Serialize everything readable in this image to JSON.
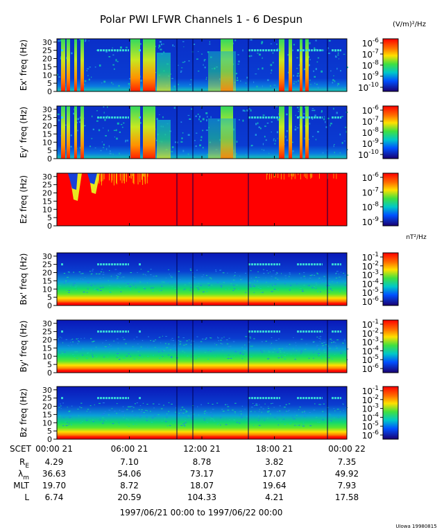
{
  "title": "Polar PWI LFWR Channels 1 - 6 Despun",
  "unit_e": "(V/m)²/Hz",
  "unit_b": "nT²/Hz",
  "footer_range": "1997/06/21 00:00 to 1997/06/22 00:00",
  "credit": "UIowa 19980815",
  "colors": {
    "background": "#ffffff",
    "dark_blue": "#0018a8",
    "red": "#ff0000"
  },
  "chart_data": {
    "type": "heatmap",
    "x_ticks": [
      "00:00 21",
      "06:00 21",
      "12:00 21",
      "18:00 21",
      "00:00 22"
    ],
    "x_axis_label": "SCET",
    "y_ticks": [
      0,
      5,
      10,
      15,
      20,
      25,
      30
    ],
    "ylim": [
      0,
      32
    ],
    "panels": [
      {
        "ylabel": "Ex' freq (Hz)",
        "cbar": [
          {
            "b": "10",
            "e": "-6"
          },
          {
            "b": "10",
            "e": "-7"
          },
          {
            "b": "10",
            "e": "-8"
          },
          {
            "b": "10",
            "e": "-9"
          },
          {
            "b": "10",
            "e": "-10"
          }
        ]
      },
      {
        "ylabel": "Ey' freq (Hz)",
        "cbar": [
          {
            "b": "10",
            "e": "-6"
          },
          {
            "b": "10",
            "e": "-7"
          },
          {
            "b": "10",
            "e": "-8"
          },
          {
            "b": "10",
            "e": "-9"
          },
          {
            "b": "10",
            "e": "-10"
          }
        ]
      },
      {
        "ylabel": "Ez freq (Hz)",
        "cbar": [
          {
            "b": "10",
            "e": "-6"
          },
          {
            "b": "10",
            "e": "-7"
          },
          {
            "b": "10",
            "e": "-8"
          },
          {
            "b": "10",
            "e": "-9"
          }
        ]
      },
      {
        "ylabel": "Bx' freq (Hz)",
        "cbar": [
          {
            "b": "10",
            "e": "-1"
          },
          {
            "b": "10",
            "e": "-2"
          },
          {
            "b": "10",
            "e": "-3"
          },
          {
            "b": "10",
            "e": "-4"
          },
          {
            "b": "10",
            "e": "-5"
          },
          {
            "b": "10",
            "e": "-6"
          }
        ]
      },
      {
        "ylabel": "By' freq (Hz)",
        "cbar": [
          {
            "b": "10",
            "e": "-1"
          },
          {
            "b": "10",
            "e": "-2"
          },
          {
            "b": "10",
            "e": "-3"
          },
          {
            "b": "10",
            "e": "-4"
          },
          {
            "b": "10",
            "e": "-5"
          },
          {
            "b": "10",
            "e": "-6"
          }
        ]
      },
      {
        "ylabel": "Bz freq (Hz)",
        "cbar": [
          {
            "b": "10",
            "e": "-1"
          },
          {
            "b": "10",
            "e": "-2"
          },
          {
            "b": "10",
            "e": "-3"
          },
          {
            "b": "10",
            "e": "-4"
          },
          {
            "b": "10",
            "e": "-5"
          },
          {
            "b": "10",
            "e": "-6"
          }
        ]
      }
    ],
    "ephemeris": [
      {
        "label": "R",
        "sub": "E",
        "values": [
          "4.29",
          "7.10",
          "8.78",
          "3.82",
          "7.35"
        ]
      },
      {
        "label": "λ",
        "sub": "m",
        "values": [
          "36.63",
          "54.06",
          "73.17",
          "17.07",
          "49.92"
        ]
      },
      {
        "label": "MLT",
        "sub": "",
        "values": [
          "19.70",
          "8.72",
          "18.07",
          "19.64",
          "7.93"
        ]
      },
      {
        "label": "L",
        "sub": "",
        "values": [
          "6.74",
          "20.59",
          "104.33",
          "4.21",
          "17.58"
        ]
      }
    ]
  }
}
